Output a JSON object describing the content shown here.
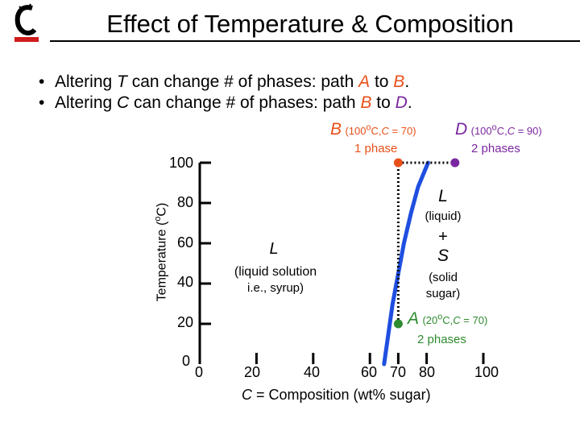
{
  "slide": {
    "title": "Effect of Temperature & Composition"
  },
  "bullets": [
    {
      "text_before": "Altering ",
      "var": "T",
      "text_middle": " can change # of phases:  path ",
      "from": "A",
      "to_word": " to ",
      "to": "B",
      "end": "."
    },
    {
      "text_before": "Altering ",
      "var": "C",
      "text_middle": " can change # of phases:  path ",
      "from": "B",
      "to_word": " to ",
      "to": "D",
      "end": "."
    }
  ],
  "points": {
    "B": {
      "letter": "B",
      "cond_pre": "(100",
      "cond_deg": "o",
      "cond_mid": "C,",
      "cond_c": "C",
      "cond_post": " = 70)",
      "phases": "1 phase",
      "color": "#e8501a"
    },
    "D": {
      "letter": "D",
      "cond_pre": "(100",
      "cond_deg": "o",
      "cond_mid": "C,",
      "cond_c": "C",
      "cond_post": " = 90)",
      "phases": "2 phases",
      "color": "#7b28a0"
    },
    "A": {
      "letter": "A",
      "cond_pre": "(20",
      "cond_deg": "o",
      "cond_mid": "C,",
      "cond_c": "C",
      "cond_post": " = 70)",
      "phases": "2 phases",
      "color": "#2e8b2e"
    }
  },
  "regions": {
    "liquid_solution": {
      "symbol": "L",
      "line1": "(liquid solution",
      "line2": "i.e., syrup)"
    },
    "two_phase": {
      "symbol": "L",
      "line1": "(liquid)",
      "plus": "+",
      "symbol2": "S",
      "line3": "(solid",
      "line4": "sugar)"
    }
  },
  "chart_data": {
    "type": "line",
    "title": "",
    "xlabel": "C = Composition (wt% sugar)",
    "ylabel": "Temperature (oC)",
    "xlim": [
      0,
      100
    ],
    "ylim": [
      0,
      100
    ],
    "x_ticks": [
      "0",
      "20",
      "40",
      "60",
      "70",
      "80",
      "100"
    ],
    "y_ticks": [
      "0",
      "20",
      "40",
      "60",
      "80",
      "100"
    ],
    "solubility_limit": {
      "color": "#1f4fe0",
      "x": [
        65.0,
        66.5,
        68.0,
        70.0,
        72.0,
        74.5,
        77.0,
        80.5
      ],
      "y": [
        0,
        15,
        30,
        45,
        60,
        75,
        88,
        100
      ]
    },
    "path_B_to_D": {
      "x": [
        70,
        90
      ],
      "y": [
        100,
        100
      ]
    },
    "path_A_to_B": {
      "x": [
        70,
        70
      ],
      "y": [
        20,
        100
      ]
    },
    "markers": [
      {
        "name": "A",
        "x": 70,
        "y": 20,
        "color": "#2e8b2e"
      },
      {
        "name": "B",
        "x": 70,
        "y": 100,
        "color": "#e8501a"
      },
      {
        "name": "D",
        "x": 90,
        "y": 100,
        "color": "#7b28a0"
      }
    ]
  },
  "axes_labels": {
    "y_unit_pre": "Temperature (",
    "y_unit_deg": "o",
    "y_unit_post": "C)",
    "x_pre": "C",
    "x_post": " = Composition (wt% sugar)"
  }
}
